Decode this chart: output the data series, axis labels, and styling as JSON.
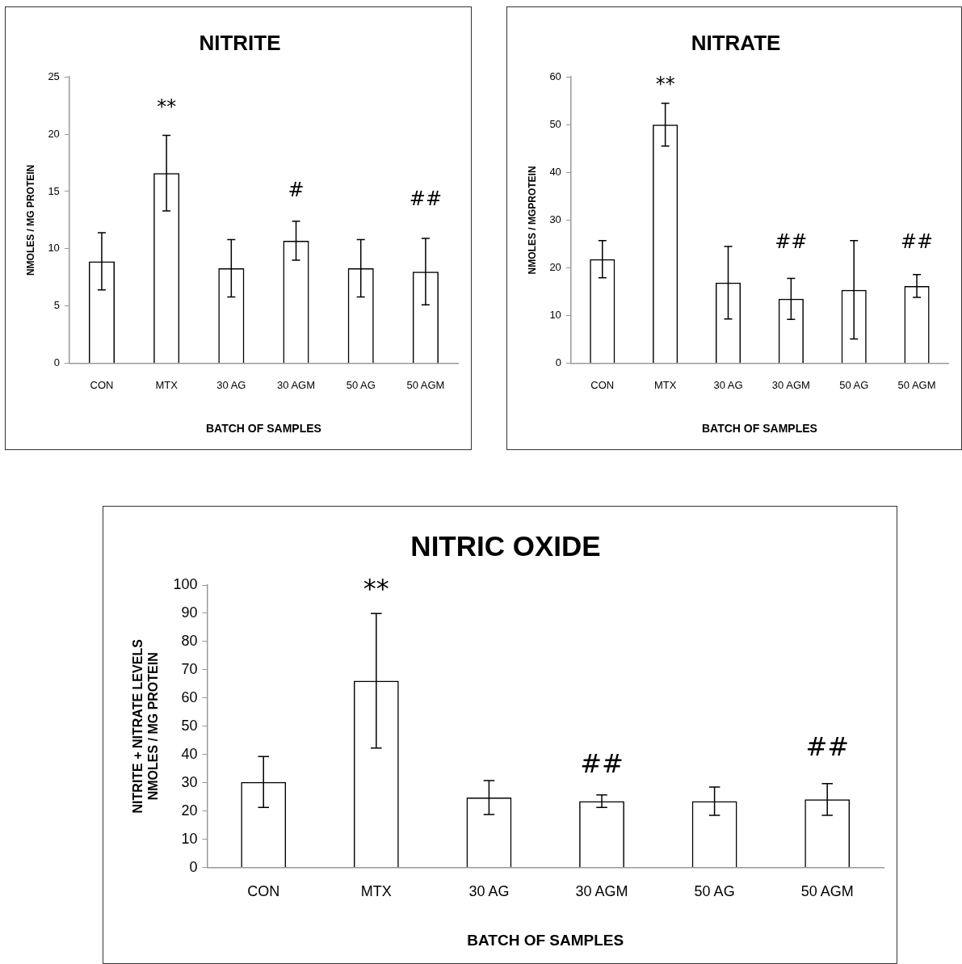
{
  "chart_data": [
    {
      "type": "bar",
      "title": "NITRITE",
      "xlabel": "BATCH OF SAMPLES",
      "ylabel": "NMOLES / MG PROTEIN",
      "categories": [
        "CON",
        "MTX",
        "30 AG",
        "30 AGM",
        "50 AG",
        "50 AGM"
      ],
      "values": [
        8.9,
        16.6,
        8.3,
        10.7,
        8.3,
        8.0
      ],
      "errors": [
        2.5,
        3.3,
        2.5,
        1.7,
        2.5,
        2.9
      ],
      "color": "#000000",
      "ylim": [
        0,
        25
      ],
      "yticks": [
        0,
        5,
        10,
        15,
        20,
        25
      ],
      "grid": false,
      "annotations": [
        "**",
        "#",
        "##"
      ]
    },
    {
      "type": "bar",
      "title": "NITRATE",
      "xlabel": "BATCH OF SAMPLES",
      "ylabel": "NMOLES / MGPROTEIN",
      "categories": [
        "CON",
        "MTX",
        "30 AG",
        "30 AGM",
        "50 AG",
        "50 AGM"
      ],
      "values": [
        21.8,
        50,
        16.9,
        13.5,
        15.4,
        16.2
      ],
      "errors": [
        3.9,
        4.5,
        7.6,
        4.3,
        10.3,
        2.4
      ],
      "color": "#000000",
      "ylim": [
        0,
        60
      ],
      "yticks": [
        0,
        10,
        20,
        30,
        40,
        50,
        60
      ],
      "grid": false,
      "annotations": [
        "**",
        "##",
        "##"
      ]
    },
    {
      "type": "bar",
      "title": "NITRIC OXIDE",
      "xlabel": "BATCH OF SAMPLES",
      "ylabel": "NITRITE + NITRATE LEVELS\nNMOLES / MG PROTEIN",
      "categories": [
        "CON",
        "MTX",
        "30 AG",
        "30 AGM",
        "50 AG",
        "50 AGM"
      ],
      "values": [
        30.3,
        66.1,
        24.8,
        23.5,
        23.5,
        24.1
      ],
      "errors": [
        9,
        23.8,
        6,
        2.2,
        5,
        5.6
      ],
      "color": "#000000",
      "ylim": [
        0,
        100
      ],
      "yticks": [
        0,
        10,
        20,
        30,
        40,
        50,
        60,
        70,
        80,
        90,
        100
      ],
      "grid": false,
      "annotations": [
        "**",
        "##",
        "##"
      ]
    }
  ]
}
